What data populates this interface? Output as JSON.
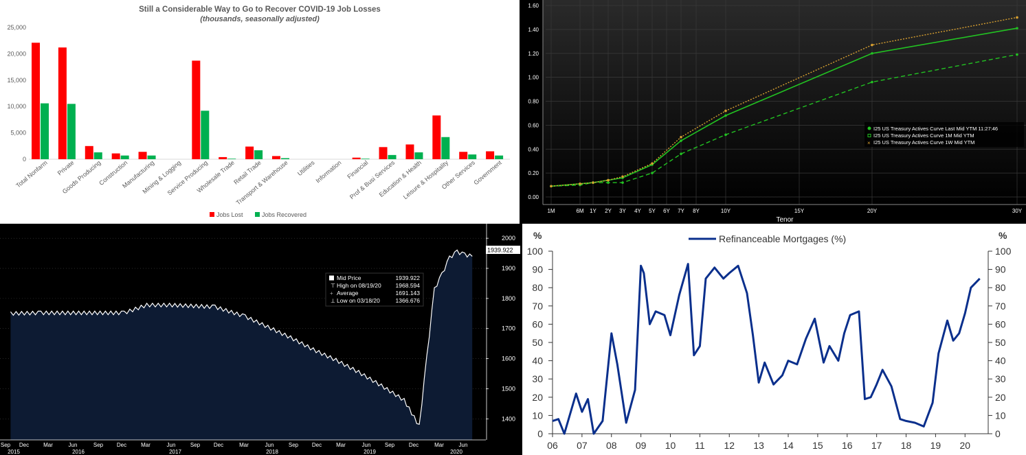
{
  "chart_data": [
    {
      "type": "bar",
      "title": "Still a Considerable Way to Go to Recover COVID-19 Job Losses",
      "subtitle": "(thousands, seasonally adjusted)",
      "categories": [
        "Total Nonfarm",
        "Private",
        "Goods Producing",
        "Construction",
        "Manufacturing",
        "Mining & Logging",
        "Service Producing",
        "Wholesale Trade",
        "Retail Trade",
        "Transport & Warehouse",
        "Utilities",
        "Information",
        "Financial",
        "Prof & Busi Services",
        "Education & Health",
        "Leisure & Hospitality",
        "Other Services",
        "Government"
      ],
      "series": [
        {
          "name": "Jobs Lost",
          "color": "#ff0000",
          "values": [
            22100,
            21200,
            2500,
            1100,
            1400,
            0,
            18700,
            400,
            2400,
            600,
            0,
            0,
            300,
            2300,
            2800,
            8300,
            1400,
            1500
          ]
        },
        {
          "name": "Jobs Recovered",
          "color": "#00b050",
          "values": [
            10600,
            10500,
            1300,
            700,
            700,
            0,
            9200,
            100,
            1700,
            200,
            0,
            0,
            100,
            800,
            1300,
            4200,
            900,
            700
          ]
        }
      ],
      "yticks": [
        "0",
        "5,000",
        "10,000",
        "15,000",
        "20,000",
        "25,000"
      ],
      "ylim": [
        0,
        25000
      ],
      "legend": "bottom"
    },
    {
      "type": "line",
      "xlabel": "Tenor",
      "xtick_labels": [
        "1M",
        "6M",
        "1Y",
        "2Y",
        "3Y",
        "4Y",
        "5Y",
        "6Y",
        "7Y",
        "8Y",
        "10Y",
        "15Y",
        "20Y",
        "30Y"
      ],
      "yticks": [
        "0.00",
        "0.20",
        "0.40",
        "0.60",
        "0.80",
        "1.00",
        "1.20",
        "1.40",
        "1.60"
      ],
      "ylim": [
        -0.05,
        1.62
      ],
      "legend": "right-middle",
      "series": [
        {
          "name": "I25 US Treasury Actives Curve Last Mid YTM 11:27:46",
          "color": "#22c322",
          "style": "solid",
          "x": [
            0.083,
            0.5,
            1,
            2,
            3,
            5,
            7,
            10,
            20,
            30
          ],
          "values": [
            0.09,
            0.11,
            0.12,
            0.14,
            0.16,
            0.27,
            0.47,
            0.68,
            1.2,
            1.41
          ]
        },
        {
          "name": "I25 US Treasury Actives Curve 1M Mid YTM",
          "color": "#22c322",
          "style": "dashed",
          "x": [
            0.083,
            0.5,
            1,
            2,
            3,
            5,
            7,
            10,
            20,
            30
          ],
          "values": [
            0.09,
            0.1,
            0.12,
            0.12,
            0.12,
            0.2,
            0.36,
            0.52,
            0.96,
            1.19
          ]
        },
        {
          "name": "I25 US Treasury Actives Curve 1W Mid YTM",
          "color": "#d8a030",
          "style": "dotted",
          "x": [
            0.083,
            0.5,
            1,
            2,
            3,
            5,
            7,
            10,
            20,
            30
          ],
          "values": [
            0.09,
            0.11,
            0.12,
            0.14,
            0.17,
            0.28,
            0.5,
            0.72,
            1.27,
            1.5
          ]
        }
      ]
    },
    {
      "type": "area",
      "ylim": [
        1330,
        2030
      ],
      "yticks": [
        "1400",
        "1500",
        "1600",
        "1700",
        "1800",
        "1900",
        "2000"
      ],
      "xtick_labels": [
        "Sep",
        "Dec",
        "Mar",
        "Jun",
        "Sep",
        "Dec",
        "Mar",
        "Jun",
        "Sep",
        "Dec",
        "Mar",
        "Jun",
        "Sep",
        "Dec",
        "Mar",
        "Jun",
        "Sep",
        "Dec",
        "Mar",
        "Jun"
      ],
      "year_labels": [
        "2015",
        "2016",
        "2017",
        "2018",
        "2019",
        "2020"
      ],
      "last_value_label": "1939.922",
      "legend": {
        "rows": [
          {
            "label": "Mid Price",
            "value": "1939.922"
          },
          {
            "label": "High on 08/19/20",
            "value": "1968.594"
          },
          {
            "label": "Average",
            "value": "1691.143"
          },
          {
            "label": "Low on 03/18/20",
            "value": "1366.676"
          }
        ]
      },
      "x": [
        "2015-09",
        "2016-01",
        "2016-06",
        "2016-12",
        "2017-03",
        "2017-06",
        "2017-12",
        "2018-04",
        "2018-07",
        "2018-10",
        "2019-01",
        "2019-04",
        "2019-07",
        "2019-10",
        "2020-01",
        "2020-03",
        "2020-04",
        "2020-05",
        "2020-06",
        "2020-07",
        "2020-08",
        "2020-09",
        "2020-10"
      ],
      "values": [
        1750,
        1752,
        1752,
        1752,
        1778,
        1778,
        1772,
        1740,
        1705,
        1670,
        1630,
        1595,
        1555,
        1510,
        1462,
        1376,
        1605,
        1830,
        1880,
        1935,
        1955,
        1945,
        1940
      ],
      "color": "#ffffff",
      "fill": "#0d1b33"
    },
    {
      "type": "line",
      "title": "Refinanceable Mortgages (%)",
      "ylabel": "%",
      "ylim": [
        0,
        100
      ],
      "yticks": [
        "0",
        "10",
        "20",
        "30",
        "40",
        "50",
        "60",
        "70",
        "80",
        "90",
        "100"
      ],
      "xtick_labels": [
        "06",
        "07",
        "08",
        "09",
        "10",
        "11",
        "12",
        "13",
        "14",
        "15",
        "16",
        "17",
        "18",
        "19",
        "20"
      ],
      "color": "#0a2f8c",
      "x": [
        2006.0,
        2006.2,
        2006.4,
        2006.8,
        2007.0,
        2007.2,
        2007.4,
        2007.7,
        2008.0,
        2008.2,
        2008.5,
        2008.8,
        2009.0,
        2009.1,
        2009.3,
        2009.5,
        2009.8,
        2010.0,
        2010.3,
        2010.6,
        2010.8,
        2011.0,
        2011.2,
        2011.5,
        2011.8,
        2012.0,
        2012.3,
        2012.6,
        2012.8,
        2013.0,
        2013.2,
        2013.5,
        2013.8,
        2014.0,
        2014.3,
        2014.6,
        2014.9,
        2015.2,
        2015.4,
        2015.7,
        2015.9,
        2016.1,
        2016.4,
        2016.6,
        2016.8,
        2017.0,
        2017.2,
        2017.5,
        2017.8,
        2018.0,
        2018.3,
        2018.6,
        2018.9,
        2019.1,
        2019.4,
        2019.6,
        2019.8,
        2020.0,
        2020.2,
        2020.5
      ],
      "values": [
        7,
        8,
        0,
        22,
        12,
        19,
        0,
        7,
        55,
        38,
        6,
        24,
        92,
        88,
        60,
        67,
        65,
        54,
        76,
        93,
        43,
        48,
        85,
        91,
        85,
        88,
        92,
        77,
        54,
        28,
        39,
        27,
        32,
        40,
        38,
        52,
        63,
        39,
        48,
        40,
        55,
        65,
        67,
        19,
        20,
        27,
        35,
        26,
        8,
        7,
        6,
        4,
        17,
        44,
        62,
        51,
        55,
        66,
        80,
        85
      ]
    }
  ]
}
